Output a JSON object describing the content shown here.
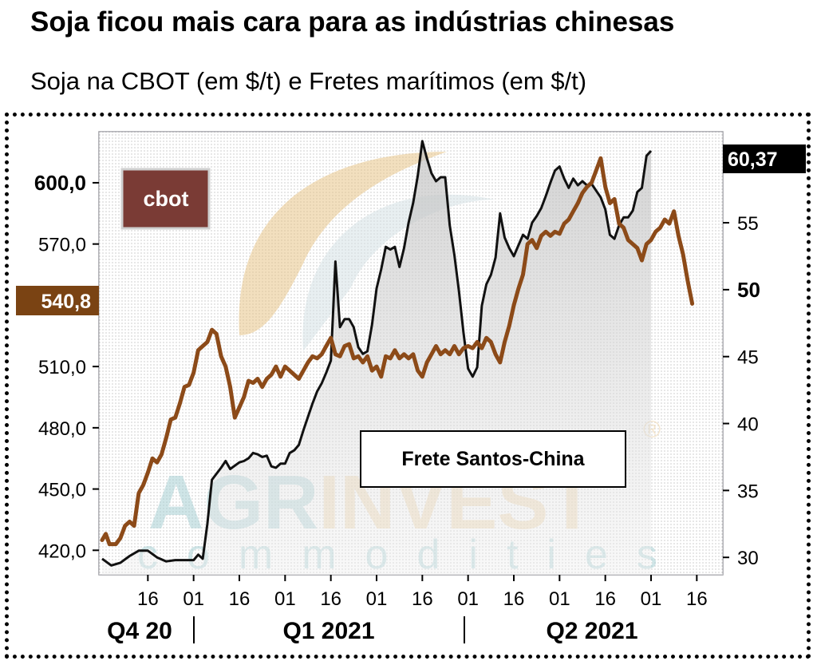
{
  "header": {
    "title": "Soja ficou mais cara para as indústrias chinesas",
    "subtitle": "Soja na CBOT (em $/t) e Fretes marítimos (em $/t)"
  },
  "watermark": {
    "brand_line1": "AGRINVEST",
    "brand_line2": "commodities",
    "registered_mark": "®"
  },
  "colors": {
    "cbot": "#8c4a18",
    "frete": "#111111",
    "cbot_label_bg": "#7a3b35",
    "cbot_last_bg": "#7a4313",
    "frete_last_bg": "#000000"
  },
  "chart_data": {
    "type": "line",
    "title": "Soja ficou mais cara para as indústrias chinesas",
    "subtitle": "Soja na CBOT (em $/t) e Fretes marítimos (em $/t)",
    "x_tick_labels": [
      "16",
      "01",
      "16",
      "01",
      "16",
      "01",
      "16",
      "01",
      "16",
      "01",
      "16",
      "01",
      "16"
    ],
    "x_tick_positions": [
      0.5,
      1,
      1.5,
      2,
      2.5,
      3,
      3.5,
      4,
      4.5,
      5,
      5.5,
      6,
      6.5
    ],
    "quarter_labels": [
      "Q4 20",
      "Q1 2021",
      "Q2 2021"
    ],
    "y_left": {
      "ticks": [
        "420,0",
        "450,0",
        "480,0",
        "510,0",
        "540,0",
        "570,0",
        "600,0"
      ],
      "tick_values": [
        420,
        450,
        480,
        510,
        540,
        570,
        600
      ],
      "range": [
        408,
        625
      ]
    },
    "y_right": {
      "ticks": [
        "30",
        "35",
        "40",
        "45",
        "50",
        "55"
      ],
      "tick_values": [
        30,
        35,
        40,
        45,
        50,
        55
      ],
      "range": [
        28.7,
        61.8
      ]
    },
    "series": [
      {
        "name": "cbot",
        "axis": "left",
        "last_value_label": "540,8",
        "points": [
          [
            0,
            425
          ],
          [
            0.04,
            428
          ],
          [
            0.08,
            423
          ],
          [
            0.15,
            423
          ],
          [
            0.2,
            426
          ],
          [
            0.25,
            432
          ],
          [
            0.3,
            434
          ],
          [
            0.35,
            432
          ],
          [
            0.4,
            448
          ],
          [
            0.45,
            452
          ],
          [
            0.5,
            458
          ],
          [
            0.55,
            465
          ],
          [
            0.6,
            463
          ],
          [
            0.65,
            467
          ],
          [
            0.7,
            475
          ],
          [
            0.75,
            484
          ],
          [
            0.8,
            485
          ],
          [
            0.85,
            492
          ],
          [
            0.9,
            500
          ],
          [
            0.95,
            501
          ],
          [
            1.0,
            507
          ],
          [
            1.05,
            518
          ],
          [
            1.1,
            520
          ],
          [
            1.15,
            522
          ],
          [
            1.2,
            528
          ],
          [
            1.25,
            526
          ],
          [
            1.3,
            515
          ],
          [
            1.35,
            510
          ],
          [
            1.4,
            500
          ],
          [
            1.45,
            485
          ],
          [
            1.5,
            490
          ],
          [
            1.55,
            495
          ],
          [
            1.6,
            503
          ],
          [
            1.65,
            502
          ],
          [
            1.7,
            504
          ],
          [
            1.75,
            500
          ],
          [
            1.8,
            504
          ],
          [
            1.85,
            506
          ],
          [
            1.9,
            510
          ],
          [
            1.95,
            505
          ],
          [
            2.0,
            510
          ],
          [
            2.05,
            508
          ],
          [
            2.1,
            506
          ],
          [
            2.15,
            504
          ],
          [
            2.2,
            508
          ],
          [
            2.25,
            512
          ],
          [
            2.3,
            515
          ],
          [
            2.35,
            514
          ],
          [
            2.4,
            516
          ],
          [
            2.45,
            520
          ],
          [
            2.5,
            524
          ],
          [
            2.55,
            516
          ],
          [
            2.6,
            515
          ],
          [
            2.65,
            520
          ],
          [
            2.7,
            521
          ],
          [
            2.75,
            514
          ],
          [
            2.8,
            515
          ],
          [
            2.85,
            512
          ],
          [
            2.9,
            515
          ],
          [
            2.95,
            508
          ],
          [
            3.0,
            510
          ],
          [
            3.05,
            505
          ],
          [
            3.1,
            515
          ],
          [
            3.15,
            514
          ],
          [
            3.2,
            518
          ],
          [
            3.25,
            514
          ],
          [
            3.3,
            516
          ],
          [
            3.35,
            514
          ],
          [
            3.4,
            516
          ],
          [
            3.45,
            508
          ],
          [
            3.5,
            505
          ],
          [
            3.55,
            512
          ],
          [
            3.6,
            516
          ],
          [
            3.65,
            520
          ],
          [
            3.7,
            516
          ],
          [
            3.75,
            518
          ],
          [
            3.8,
            516
          ],
          [
            3.85,
            520
          ],
          [
            3.9,
            516
          ],
          [
            3.95,
            519
          ],
          [
            4.0,
            520
          ],
          [
            4.05,
            519
          ],
          [
            4.1,
            522
          ],
          [
            4.15,
            519
          ],
          [
            4.2,
            524
          ],
          [
            4.25,
            522
          ],
          [
            4.3,
            516
          ],
          [
            4.35,
            512
          ],
          [
            4.4,
            522
          ],
          [
            4.45,
            530
          ],
          [
            4.5,
            540
          ],
          [
            4.55,
            548
          ],
          [
            4.6,
            555
          ],
          [
            4.65,
            570
          ],
          [
            4.7,
            572
          ],
          [
            4.75,
            568
          ],
          [
            4.8,
            574
          ],
          [
            4.85,
            576
          ],
          [
            4.9,
            574
          ],
          [
            4.95,
            576
          ],
          [
            5.0,
            575
          ],
          [
            5.05,
            580
          ],
          [
            5.1,
            582
          ],
          [
            5.15,
            586
          ],
          [
            5.2,
            590
          ],
          [
            5.25,
            595
          ],
          [
            5.3,
            598
          ],
          [
            5.35,
            600
          ],
          [
            5.4,
            606
          ],
          [
            5.45,
            612
          ],
          [
            5.5,
            598
          ],
          [
            5.55,
            590
          ],
          [
            5.6,
            592
          ],
          [
            5.65,
            580
          ],
          [
            5.7,
            578
          ],
          [
            5.75,
            572
          ],
          [
            5.8,
            570
          ],
          [
            5.85,
            568
          ],
          [
            5.9,
            562
          ],
          [
            5.95,
            570
          ],
          [
            6.0,
            572
          ],
          [
            6.05,
            576
          ],
          [
            6.1,
            578
          ],
          [
            6.15,
            582
          ],
          [
            6.2,
            580
          ],
          [
            6.25,
            586
          ],
          [
            6.3,
            574
          ],
          [
            6.35,
            565
          ],
          [
            6.4,
            552
          ],
          [
            6.45,
            540.8
          ]
        ]
      },
      {
        "name": "Frete Santos-China",
        "axis": "right",
        "last_value_label": "60,37",
        "points": [
          [
            0,
            29.9
          ],
          [
            0.1,
            29.4
          ],
          [
            0.2,
            29.6
          ],
          [
            0.3,
            30.1
          ],
          [
            0.4,
            30.5
          ],
          [
            0.5,
            30.5
          ],
          [
            0.6,
            30.0
          ],
          [
            0.7,
            29.7
          ],
          [
            0.8,
            29.8
          ],
          [
            0.9,
            29.8
          ],
          [
            1.0,
            29.8
          ],
          [
            1.05,
            30.2
          ],
          [
            1.1,
            29.9
          ],
          [
            1.15,
            32.5
          ],
          [
            1.2,
            35.8
          ],
          [
            1.3,
            36.7
          ],
          [
            1.35,
            37.2
          ],
          [
            1.4,
            36.6
          ],
          [
            1.5,
            37.1
          ],
          [
            1.55,
            37.2
          ],
          [
            1.6,
            37.4
          ],
          [
            1.65,
            37.8
          ],
          [
            1.7,
            37.7
          ],
          [
            1.75,
            37.5
          ],
          [
            1.8,
            37.6
          ],
          [
            1.85,
            36.8
          ],
          [
            1.9,
            36.7
          ],
          [
            1.95,
            37.0
          ],
          [
            2.0,
            37.0
          ],
          [
            2.05,
            37.8
          ],
          [
            2.1,
            38.0
          ],
          [
            2.15,
            38.4
          ],
          [
            2.2,
            39.5
          ],
          [
            2.25,
            40.5
          ],
          [
            2.3,
            41.5
          ],
          [
            2.35,
            42.4
          ],
          [
            2.4,
            43.0
          ],
          [
            2.45,
            43.8
          ],
          [
            2.5,
            44.7
          ],
          [
            2.55,
            52.1
          ],
          [
            2.6,
            47.2
          ],
          [
            2.65,
            47.8
          ],
          [
            2.7,
            47.8
          ],
          [
            2.75,
            47.2
          ],
          [
            2.8,
            45.7
          ],
          [
            2.85,
            45.2
          ],
          [
            2.9,
            45.4
          ],
          [
            2.95,
            47.4
          ],
          [
            3.0,
            50.1
          ],
          [
            3.05,
            51.5
          ],
          [
            3.1,
            53.2
          ],
          [
            3.15,
            53.0
          ],
          [
            3.2,
            53.2
          ],
          [
            3.25,
            51.7
          ],
          [
            3.3,
            53.1
          ],
          [
            3.35,
            55.0
          ],
          [
            3.4,
            56.5
          ],
          [
            3.45,
            58.5
          ],
          [
            3.5,
            61.1
          ],
          [
            3.55,
            59.8
          ],
          [
            3.6,
            58.7
          ],
          [
            3.65,
            58.1
          ],
          [
            3.7,
            58.4
          ],
          [
            3.75,
            58.4
          ],
          [
            3.8,
            54.8
          ],
          [
            3.85,
            52.6
          ],
          [
            3.9,
            49.9
          ],
          [
            3.95,
            46.8
          ],
          [
            4.0,
            44.1
          ],
          [
            4.05,
            43.5
          ],
          [
            4.1,
            44.2
          ],
          [
            4.15,
            48.8
          ],
          [
            4.2,
            50.4
          ],
          [
            4.25,
            51.1
          ],
          [
            4.3,
            52.4
          ],
          [
            4.35,
            55.7
          ],
          [
            4.4,
            53.9
          ],
          [
            4.45,
            53.1
          ],
          [
            4.5,
            52.5
          ],
          [
            4.55,
            53.3
          ],
          [
            4.6,
            54.1
          ],
          [
            4.65,
            53.8
          ],
          [
            4.7,
            55.0
          ],
          [
            4.75,
            55.5
          ],
          [
            4.8,
            56.1
          ],
          [
            4.85,
            57.0
          ],
          [
            4.9,
            58.0
          ],
          [
            4.95,
            58.9
          ],
          [
            5.0,
            59.2
          ],
          [
            5.05,
            58.3
          ],
          [
            5.1,
            57.6
          ],
          [
            5.15,
            58.3
          ],
          [
            5.2,
            57.8
          ],
          [
            5.25,
            58.1
          ],
          [
            5.3,
            57.8
          ],
          [
            5.35,
            57.9
          ],
          [
            5.4,
            57.4
          ],
          [
            5.45,
            56.9
          ],
          [
            5.5,
            56.0
          ],
          [
            5.55,
            54.1
          ],
          [
            5.6,
            53.8
          ],
          [
            5.65,
            54.8
          ],
          [
            5.7,
            55.4
          ],
          [
            5.75,
            55.4
          ],
          [
            5.8,
            55.9
          ],
          [
            5.85,
            57.3
          ],
          [
            5.9,
            57.6
          ],
          [
            5.95,
            60.0
          ],
          [
            6.0,
            60.37
          ]
        ]
      }
    ]
  }
}
